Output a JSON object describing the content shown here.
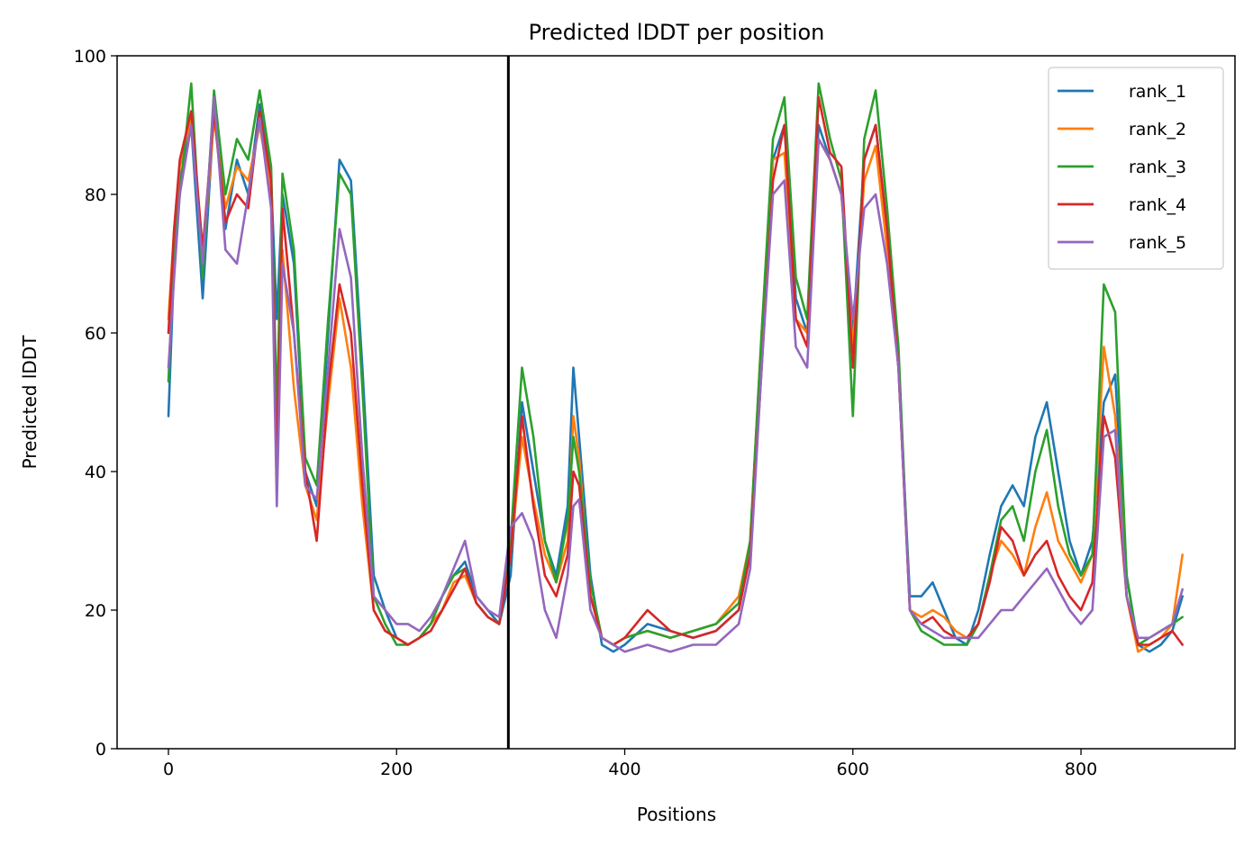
{
  "chart_data": {
    "type": "line",
    "title": "Predicted lDDT per position",
    "xlabel": "Positions",
    "ylabel": "Predicted lDDT",
    "xlim": [
      -45,
      935
    ],
    "ylim": [
      0,
      100
    ],
    "xticks": [
      0,
      200,
      400,
      600,
      800
    ],
    "yticks": [
      0,
      20,
      40,
      60,
      80,
      100
    ],
    "grid": false,
    "legend_position": "top-right",
    "chain_boundary_x": 298,
    "series": [
      {
        "name": "rank_1",
        "color": "#1f77b4",
        "x": [
          0,
          5,
          10,
          20,
          30,
          40,
          50,
          60,
          70,
          80,
          90,
          95,
          100,
          110,
          120,
          130,
          140,
          150,
          160,
          170,
          180,
          190,
          200,
          210,
          220,
          230,
          240,
          250,
          260,
          270,
          280,
          290,
          300,
          310,
          320,
          330,
          340,
          350,
          355,
          360,
          370,
          380,
          390,
          400,
          420,
          440,
          460,
          480,
          500,
          510,
          520,
          530,
          540,
          550,
          560,
          570,
          580,
          590,
          600,
          610,
          620,
          630,
          640,
          650,
          660,
          670,
          680,
          690,
          700,
          710,
          720,
          730,
          740,
          750,
          760,
          770,
          780,
          790,
          800,
          810,
          820,
          830,
          840,
          850,
          860,
          870,
          880,
          889
        ],
        "y": [
          48,
          70,
          82,
          90,
          65,
          92,
          75,
          85,
          80,
          93,
          82,
          62,
          80,
          70,
          40,
          35,
          60,
          85,
          82,
          55,
          25,
          20,
          16,
          15,
          16,
          18,
          22,
          25,
          27,
          22,
          20,
          18,
          25,
          50,
          40,
          30,
          25,
          35,
          55,
          45,
          25,
          15,
          14,
          15,
          18,
          17,
          16,
          17,
          20,
          28,
          55,
          85,
          90,
          65,
          60,
          90,
          85,
          80,
          60,
          85,
          90,
          75,
          55,
          22,
          22,
          24,
          20,
          16,
          15,
          20,
          28,
          35,
          38,
          35,
          45,
          50,
          40,
          30,
          25,
          30,
          50,
          54,
          25,
          15,
          14,
          15,
          17,
          22
        ]
      },
      {
        "name": "rank_2",
        "color": "#ff7f0e",
        "x": [
          0,
          5,
          10,
          20,
          30,
          40,
          50,
          60,
          70,
          80,
          90,
          95,
          100,
          110,
          120,
          130,
          140,
          150,
          160,
          170,
          180,
          190,
          200,
          210,
          220,
          230,
          240,
          250,
          260,
          270,
          280,
          290,
          300,
          310,
          320,
          330,
          340,
          350,
          355,
          360,
          370,
          380,
          390,
          400,
          420,
          440,
          460,
          480,
          500,
          510,
          520,
          530,
          540,
          550,
          560,
          570,
          580,
          590,
          600,
          610,
          620,
          630,
          640,
          650,
          660,
          670,
          680,
          690,
          700,
          710,
          720,
          730,
          740,
          750,
          760,
          770,
          780,
          790,
          800,
          810,
          820,
          830,
          840,
          850,
          860,
          870,
          880,
          889
        ],
        "y": [
          62,
          75,
          84,
          91,
          70,
          91,
          78,
          84,
          82,
          90,
          80,
          40,
          72,
          52,
          38,
          33,
          50,
          65,
          55,
          35,
          20,
          17,
          16,
          15,
          16,
          18,
          20,
          24,
          25,
          21,
          19,
          18,
          28,
          45,
          36,
          28,
          24,
          30,
          48,
          42,
          22,
          16,
          15,
          16,
          17,
          16,
          17,
          18,
          22,
          30,
          60,
          85,
          86,
          62,
          60,
          88,
          85,
          80,
          58,
          82,
          87,
          72,
          55,
          20,
          19,
          20,
          19,
          17,
          16,
          18,
          25,
          30,
          28,
          25,
          32,
          37,
          30,
          27,
          24,
          28,
          58,
          48,
          22,
          14,
          15,
          16,
          18,
          28
        ]
      },
      {
        "name": "rank_3",
        "color": "#2ca02c",
        "x": [
          0,
          5,
          10,
          20,
          30,
          40,
          50,
          60,
          70,
          80,
          90,
          95,
          100,
          110,
          120,
          130,
          140,
          150,
          160,
          170,
          180,
          190,
          200,
          210,
          220,
          230,
          240,
          250,
          260,
          270,
          280,
          290,
          300,
          310,
          320,
          330,
          340,
          350,
          355,
          360,
          370,
          380,
          390,
          400,
          420,
          440,
          460,
          480,
          500,
          510,
          520,
          530,
          540,
          550,
          560,
          570,
          580,
          590,
          600,
          610,
          620,
          630,
          640,
          650,
          660,
          670,
          680,
          690,
          700,
          710,
          720,
          730,
          740,
          750,
          760,
          770,
          780,
          790,
          800,
          810,
          820,
          830,
          840,
          850,
          860,
          870,
          880,
          889
        ],
        "y": [
          53,
          72,
          80,
          96,
          68,
          95,
          80,
          88,
          85,
          95,
          84,
          48,
          83,
          72,
          42,
          38,
          62,
          83,
          80,
          52,
          22,
          18,
          15,
          15,
          16,
          18,
          22,
          25,
          26,
          21,
          19,
          18,
          30,
          55,
          45,
          30,
          24,
          33,
          45,
          40,
          24,
          16,
          15,
          16,
          17,
          16,
          17,
          18,
          21,
          30,
          60,
          88,
          94,
          68,
          62,
          96,
          88,
          82,
          48,
          88,
          95,
          78,
          58,
          20,
          17,
          16,
          15,
          15,
          15,
          18,
          25,
          33,
          35,
          30,
          40,
          46,
          35,
          28,
          25,
          28,
          67,
          63,
          25,
          15,
          16,
          17,
          18,
          19
        ]
      },
      {
        "name": "rank_4",
        "color": "#d62728",
        "x": [
          0,
          5,
          10,
          20,
          30,
          40,
          50,
          60,
          70,
          80,
          90,
          95,
          100,
          110,
          120,
          130,
          140,
          150,
          160,
          170,
          180,
          190,
          200,
          210,
          220,
          230,
          240,
          250,
          260,
          270,
          280,
          290,
          300,
          310,
          320,
          330,
          340,
          350,
          355,
          360,
          370,
          380,
          390,
          400,
          420,
          440,
          460,
          480,
          500,
          510,
          520,
          530,
          540,
          550,
          560,
          570,
          580,
          590,
          600,
          610,
          620,
          630,
          640,
          650,
          660,
          670,
          680,
          690,
          700,
          710,
          720,
          730,
          740,
          750,
          760,
          770,
          780,
          790,
          800,
          810,
          820,
          830,
          840,
          850,
          860,
          870,
          880,
          889
        ],
        "y": [
          60,
          75,
          85,
          92,
          72,
          92,
          76,
          80,
          78,
          92,
          82,
          40,
          78,
          60,
          40,
          30,
          52,
          67,
          60,
          38,
          20,
          17,
          16,
          15,
          16,
          17,
          20,
          23,
          26,
          21,
          19,
          18,
          28,
          48,
          35,
          25,
          22,
          28,
          40,
          38,
          22,
          16,
          15,
          16,
          20,
          17,
          16,
          17,
          20,
          28,
          55,
          82,
          90,
          62,
          58,
          94,
          86,
          84,
          55,
          85,
          90,
          75,
          55,
          20,
          18,
          19,
          17,
          16,
          16,
          18,
          24,
          32,
          30,
          25,
          28,
          30,
          25,
          22,
          20,
          24,
          48,
          42,
          22,
          15,
          15,
          16,
          17,
          15
        ]
      },
      {
        "name": "rank_5",
        "color": "#9467bd",
        "x": [
          0,
          5,
          10,
          20,
          30,
          40,
          50,
          60,
          70,
          80,
          90,
          95,
          100,
          110,
          120,
          130,
          140,
          150,
          160,
          170,
          180,
          190,
          200,
          210,
          220,
          230,
          240,
          250,
          260,
          270,
          280,
          290,
          300,
          310,
          320,
          330,
          340,
          350,
          355,
          360,
          370,
          380,
          390,
          400,
          420,
          440,
          460,
          480,
          500,
          510,
          520,
          530,
          540,
          550,
          560,
          570,
          580,
          590,
          600,
          610,
          620,
          630,
          640,
          650,
          660,
          670,
          680,
          690,
          700,
          710,
          720,
          730,
          740,
          750,
          760,
          770,
          780,
          790,
          800,
          810,
          820,
          830,
          840,
          850,
          860,
          870,
          880,
          889
        ],
        "y": [
          55,
          68,
          80,
          90,
          70,
          94,
          72,
          70,
          80,
          91,
          78,
          35,
          70,
          60,
          38,
          36,
          55,
          75,
          68,
          42,
          22,
          20,
          18,
          18,
          17,
          19,
          22,
          26,
          30,
          22,
          20,
          19,
          32,
          34,
          30,
          20,
          16,
          25,
          35,
          36,
          20,
          16,
          15,
          14,
          15,
          14,
          15,
          15,
          18,
          26,
          55,
          80,
          82,
          58,
          55,
          88,
          85,
          80,
          62,
          78,
          80,
          70,
          55,
          20,
          18,
          17,
          16,
          16,
          16,
          16,
          18,
          20,
          20,
          22,
          24,
          26,
          23,
          20,
          18,
          20,
          45,
          46,
          22,
          16,
          16,
          17,
          18,
          23
        ]
      }
    ]
  }
}
